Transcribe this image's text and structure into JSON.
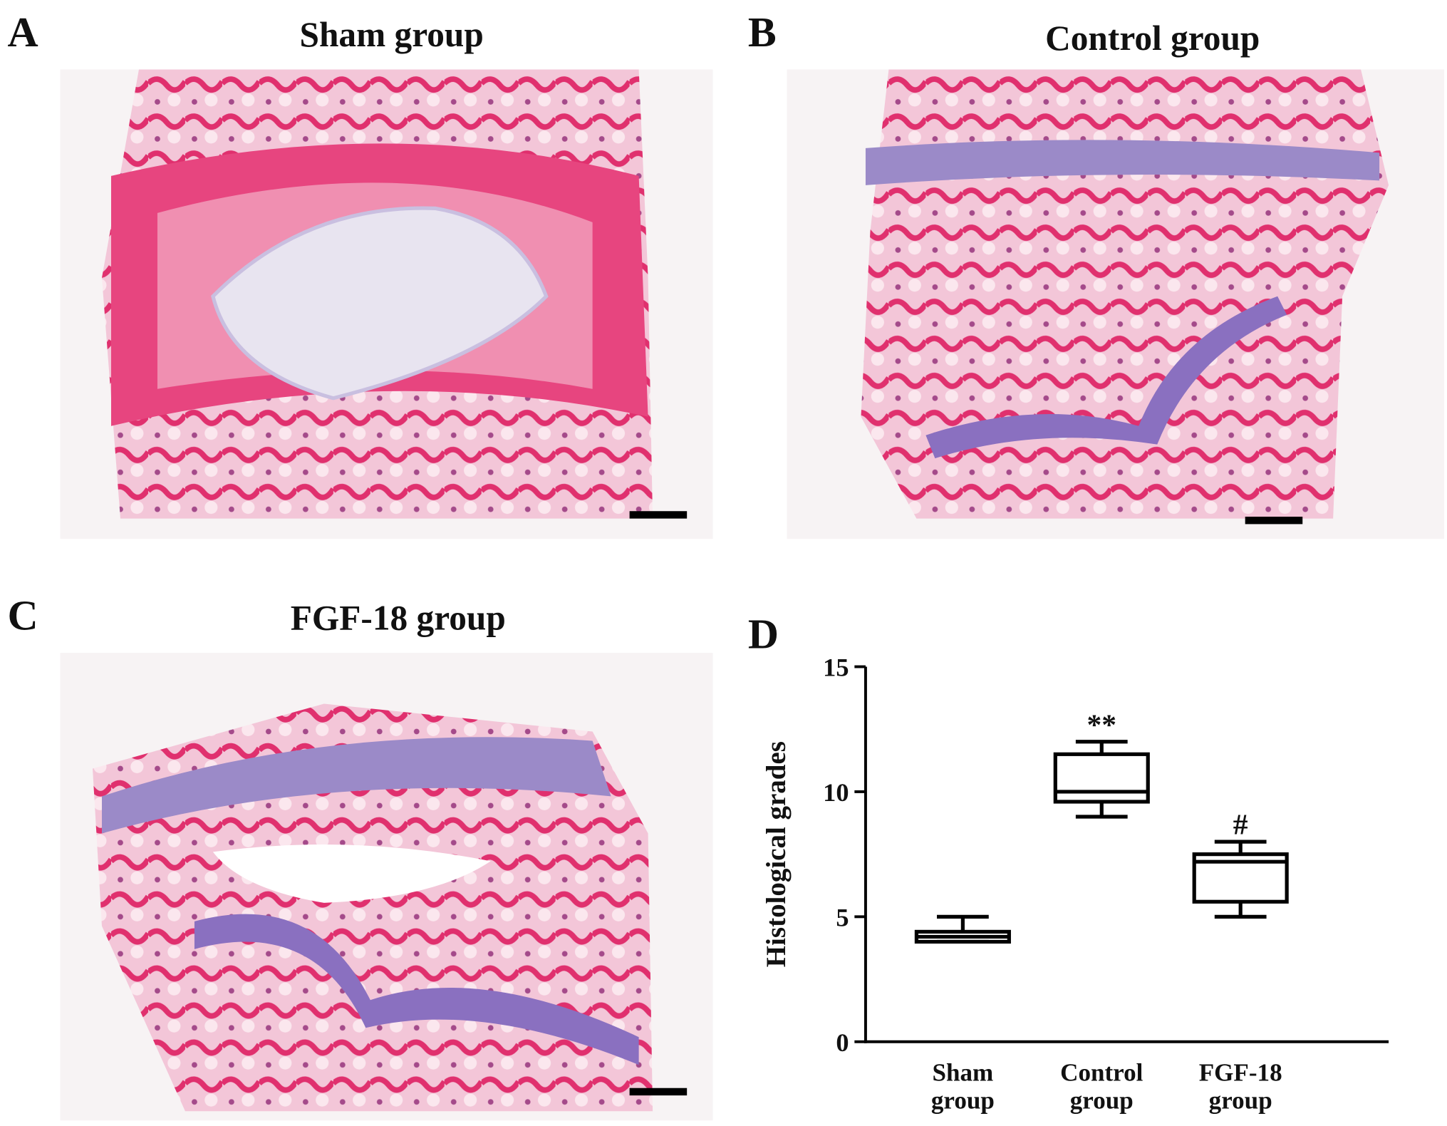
{
  "panels": [
    {
      "label": "A",
      "title": "Sham group"
    },
    {
      "label": "B",
      "title": "Control group"
    },
    {
      "label": "C",
      "title": "FGF-18 group"
    }
  ],
  "chart_data": {
    "type": "box",
    "label": "D",
    "ylabel": "Histological grades",
    "categories": [
      "Sham group",
      "Control group",
      "FGF-18 group"
    ],
    "boxes": [
      {
        "min": 4,
        "q1": 4,
        "median": 4.2,
        "q3": 4.4,
        "max": 5
      },
      {
        "min": 9,
        "q1": 9.6,
        "median": 10,
        "q3": 11.5,
        "max": 12
      },
      {
        "min": 5,
        "q1": 5.6,
        "median": 7.2,
        "q3": 7.5,
        "max": 8
      }
    ],
    "annotations": [
      "",
      "**",
      "#"
    ],
    "ylim": [
      0,
      15
    ],
    "yticks": [
      0,
      5,
      10,
      15
    ],
    "color": "#000000"
  }
}
